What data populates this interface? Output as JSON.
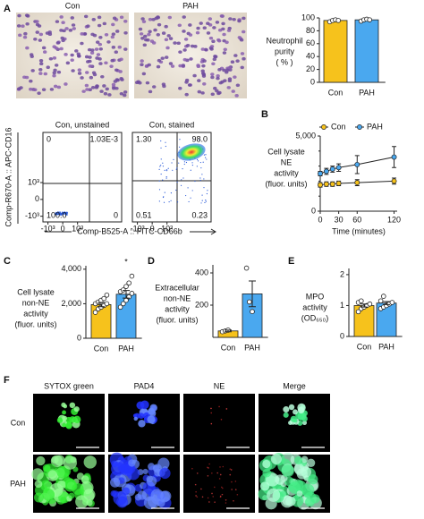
{
  "panel_labels": [
    "A",
    "B",
    "C",
    "D",
    "E",
    "F"
  ],
  "micrograph_titles": [
    "Con",
    "PAH"
  ],
  "flow": {
    "y_label": "Comp-R670-A :: APC-CD16",
    "x_label": "Comp-B525-A :: FITC-CD66b",
    "xlim": [
      -2000,
      250000
    ],
    "ylim": [
      -2000,
      250000
    ],
    "xticks": [
      {
        "value": -1000,
        "label": "-10³"
      },
      0,
      {
        "value": 1000,
        "label": "10³"
      }
    ],
    "yticks": [
      {
        "value": -1000,
        "label": "-10³"
      },
      0,
      {
        "value": 1000,
        "label": "10³"
      }
    ],
    "plots": [
      {
        "title": "Con, unstained",
        "values": [
          0,
          0.00103,
          100,
          0
        ],
        "value_labels": [
          "0",
          "1.03E-3",
          "100.0",
          "0"
        ]
      },
      {
        "title": "Con, stained",
        "values": [
          1.3,
          98,
          0.51,
          0.23
        ],
        "value_labels": [
          "1.30",
          "98.0",
          "0.51",
          "0.23"
        ]
      }
    ]
  },
  "chart_data": [
    {
      "type": "bar",
      "ylabel": [
        "Neutrophil",
        "purity",
        "( % )"
      ],
      "categories": [
        "Con",
        "PAH"
      ],
      "values": [
        96,
        97
      ],
      "colors": [
        "#f6c21c",
        "#4aa8ef"
      ],
      "points": [
        [
          94,
          96,
          97,
          96
        ],
        [
          95,
          97,
          98,
          97
        ]
      ],
      "ylim": [
        0,
        100
      ],
      "yticks": [
        0,
        20,
        40,
        60,
        80,
        100
      ]
    },
    {
      "type": "line",
      "ylabel": [
        "Cell lysate",
        "NE",
        "activity",
        "(fluor. units)"
      ],
      "xlabel": "Time (minutes)",
      "x": [
        0,
        10,
        20,
        30,
        60,
        120
      ],
      "series": [
        {
          "name": "Con",
          "color": "#f6c21c",
          "values": [
            1750,
            1800,
            1800,
            1850,
            1900,
            2000
          ],
          "errors": [
            150,
            150,
            150,
            150,
            200,
            200
          ]
        },
        {
          "name": "PAH",
          "color": "#4aa8ef",
          "values": [
            2500,
            2650,
            2800,
            2900,
            3100,
            3600
          ],
          "errors": [
            150,
            200,
            200,
            250,
            600,
            700
          ]
        }
      ],
      "xlim": [
        0,
        125
      ],
      "xticks": [
        0,
        30,
        60,
        120
      ],
      "ylim": [
        0,
        5000
      ],
      "yticks": [
        0,
        {
          "value": 5000,
          "label": "5,000"
        }
      ],
      "minor_yticks": [
        1000,
        2000,
        3000,
        4000
      ],
      "legend": "top"
    },
    {
      "type": "bar",
      "ylabel": [
        "Cell lysate",
        "non-NE",
        "activity",
        "(fluor. units)"
      ],
      "categories": [
        "Con",
        "PAH"
      ],
      "values": [
        1950,
        2550
      ],
      "errors": [
        120,
        220
      ],
      "colors": [
        "#f6c21c",
        "#4aa8ef"
      ],
      "points": [
        [
          1500,
          1700,
          1800,
          1900,
          2000,
          2000,
          2100,
          2200,
          2300,
          2500
        ],
        [
          1800,
          2000,
          2200,
          2400,
          2600,
          2700,
          2800,
          3000,
          3200,
          3600
        ]
      ],
      "ylim": [
        0,
        4200
      ],
      "yticks": [
        0,
        {
          "value": 2000,
          "label": "2,000"
        },
        {
          "value": 4000,
          "label": "4,000"
        }
      ],
      "annotations": [
        {
          "category": 1,
          "text": "*"
        }
      ]
    },
    {
      "type": "bar",
      "ylabel": [
        "Extracellular",
        "non-NE",
        "activity",
        "(fluor. units)"
      ],
      "categories": [
        "Con",
        "PAH"
      ],
      "values": [
        40,
        270
      ],
      "errors": [
        5,
        80
      ],
      "colors": [
        "#f6c21c",
        "#4aa8ef"
      ],
      "points": [
        [
          35,
          40,
          45
        ],
        [
          430,
          220,
          160
        ]
      ],
      "ylim": [
        0,
        450
      ],
      "yticks": [
        200,
        400
      ]
    },
    {
      "type": "bar",
      "ylabel": [
        "MPO",
        "activity",
        "(OD₆₅₀)"
      ],
      "categories": [
        "Con",
        "PAH"
      ],
      "values": [
        1.0,
        1.08
      ],
      "errors": [
        0.05,
        0.05
      ],
      "colors": [
        "#f6c21c",
        "#4aa8ef"
      ],
      "points": [
        [
          0.8,
          0.9,
          0.95,
          1.0,
          1.05,
          1.1,
          1.15
        ],
        [
          0.9,
          0.95,
          1.0,
          1.05,
          1.1,
          1.15,
          1.3
        ]
      ],
      "ylim": [
        0,
        2.2
      ],
      "yticks": [
        0,
        1,
        2
      ]
    }
  ],
  "figure_f": {
    "columns": [
      "SYTOX green",
      "PAD4",
      "NE",
      "Merge"
    ],
    "rows": [
      "Con",
      "PAH"
    ]
  }
}
